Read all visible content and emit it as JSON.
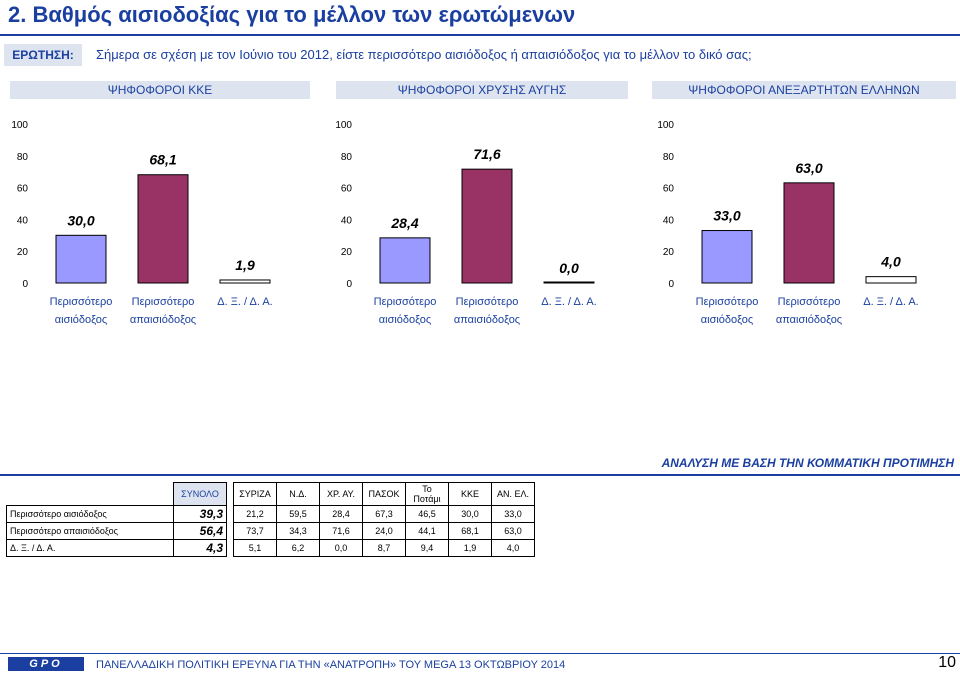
{
  "page_title": "2.   Βαθμός αισιοδοξίας για το μέλλον των ερωτώμενων",
  "question": {
    "label": "ΕΡΩΤΗΣΗ:",
    "text": "Σήμερα σε σχέση με τον Ιούνιο του 2012, είστε περισσότερο αισιόδοξος ή απαισιόδοξος για το μέλλον το δικό σας;"
  },
  "colors": {
    "optimist": "#9999ff",
    "pessimist": "#993366",
    "accent": "#1a3fa0"
  },
  "chart_data": [
    {
      "type": "bar",
      "title": "ΨΗΦΟΦΟΡΟΙ ΚΚΕ",
      "categories": [
        "Περισσότερο αισιόδοξος",
        "Περισσότερο απαισιόδοξος",
        "Δ. Ξ. / Δ. Α."
      ],
      "category_lines": [
        [
          "Περισσότερο",
          "αισιόδοξος"
        ],
        [
          "Περισσότερο",
          "απαισιόδοξος"
        ],
        [
          "Δ. Ξ. / Δ. Α."
        ]
      ],
      "values": [
        30.0,
        68.1,
        1.9
      ],
      "value_labels": [
        "30,0",
        "68,1",
        "1,9"
      ],
      "yticks": [
        "0",
        "20",
        "40",
        "60",
        "80",
        "100"
      ],
      "ylim": [
        0,
        100
      ]
    },
    {
      "type": "bar",
      "title": "ΨΗΦΟΦΟΡΟΙ ΧΡΥΣΗΣ ΑΥΓΗΣ",
      "categories": [
        "Περισσότερο αισιόδοξος",
        "Περισσότερο απαισιόδοξος",
        "Δ. Ξ. / Δ. Α."
      ],
      "category_lines": [
        [
          "Περισσότερο",
          "αισιόδοξος"
        ],
        [
          "Περισσότερο",
          "απαισιόδοξος"
        ],
        [
          "Δ. Ξ. / Δ. Α."
        ]
      ],
      "values": [
        28.4,
        71.6,
        0.0
      ],
      "value_labels": [
        "28,4",
        "71,6",
        "0,0"
      ],
      "yticks": [
        "0",
        "20",
        "40",
        "60",
        "80",
        "100"
      ],
      "ylim": [
        0,
        100
      ]
    },
    {
      "type": "bar",
      "title": "ΨΗΦΟΦΟΡΟΙ ΑΝΕΞΑΡΤΗΤΩΝ ΕΛΛΗΝΩΝ",
      "categories": [
        "Περισσότερο αισιόδοξος",
        "Περισσότερο απαισιόδοξος",
        "Δ. Ξ. / Δ. Α."
      ],
      "category_lines": [
        [
          "Περισσότερο",
          "αισιόδοξος"
        ],
        [
          "Περισσότερο",
          "απαισιόδοξος"
        ],
        [
          "Δ. Ξ. / Δ. Α."
        ]
      ],
      "values": [
        33.0,
        63.0,
        4.0
      ],
      "value_labels": [
        "33,0",
        "63,0",
        "4,0"
      ],
      "yticks": [
        "0",
        "20",
        "40",
        "60",
        "80",
        "100"
      ],
      "ylim": [
        0,
        100
      ]
    }
  ],
  "analysis_heading": "ΑΝΑΛΥΣΗ ΜΕ ΒΑΣΗ ΤΗΝ ΚΟΜΜΑΤΙΚΗ ΠΡΟΤΙΜΗΣΗ",
  "table": {
    "total_header": "ΣΥΝΟΛΟ",
    "party_headers": [
      "ΣΥΡΙΖΑ",
      "Ν.Δ.",
      "ΧΡ. ΑΥ.",
      "ΠΑΣΟΚ",
      "Το Ποτάμι",
      "ΚΚΕ",
      "ΑΝ. ΕΛ."
    ],
    "rows": [
      {
        "label": "Περισσότερο αισιόδοξος",
        "total": "39,3",
        "values": [
          "21,2",
          "59,5",
          "28,4",
          "67,3",
          "46,5",
          "30,0",
          "33,0"
        ]
      },
      {
        "label": "Περισσότερο απαισιόδοξος",
        "total": "56,4",
        "values": [
          "73,7",
          "34,3",
          "71,6",
          "24,0",
          "44,1",
          "68,1",
          "63,0"
        ]
      },
      {
        "label": "Δ. Ξ. / Δ. Α.",
        "total": "4,3",
        "values": [
          "5,1",
          "6,2",
          "0,0",
          "8,7",
          "9,4",
          "1,9",
          "4,0"
        ]
      }
    ]
  },
  "footer": {
    "logo": "GPO",
    "text": "ΠΑΝΕΛΛΑΔΙΚΗ ΠΟΛΙΤΙΚΗ ΕΡΕΥΝΑ ΓΙΑ ΤΗΝ «ΑΝΑΤΡΟΠΗ» ΤΟΥ MEGA  13  ΟΚΤΩΒΡΙΟΥ 2014",
    "page_number": "10"
  }
}
